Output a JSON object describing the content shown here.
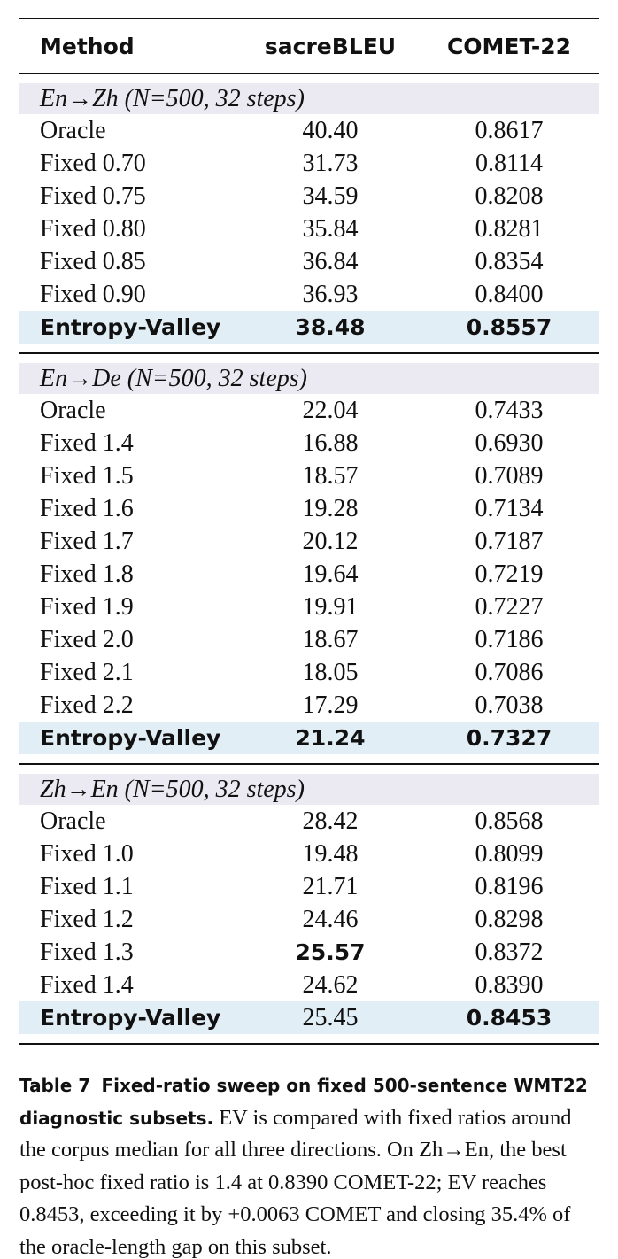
{
  "header": [
    "Method",
    "sacreBLEU",
    "COMET-22"
  ],
  "sections": [
    {
      "title": "En→Zh (N=500, 32 steps)",
      "rows": [
        [
          "Oracle",
          "40.40",
          "0.8617"
        ],
        [
          "Fixed 0.70",
          "31.73",
          "0.8114"
        ],
        [
          "Fixed 0.75",
          "34.59",
          "0.8208"
        ],
        [
          "Fixed 0.80",
          "35.84",
          "0.8281"
        ],
        [
          "Fixed 0.85",
          "36.84",
          "0.8354"
        ],
        [
          "Fixed 0.90",
          "36.93",
          "0.8400"
        ],
        [
          "Entropy-Valley",
          "38.48",
          "0.8557"
        ]
      ],
      "highlight_row": 6,
      "bold_cells": [
        [
          6,
          0
        ],
        [
          6,
          1
        ],
        [
          6,
          2
        ]
      ]
    },
    {
      "title": "En→De (N=500, 32 steps)",
      "rows": [
        [
          "Oracle",
          "22.04",
          "0.7433"
        ],
        [
          "Fixed 1.4",
          "16.88",
          "0.6930"
        ],
        [
          "Fixed 1.5",
          "18.57",
          "0.7089"
        ],
        [
          "Fixed 1.6",
          "19.28",
          "0.7134"
        ],
        [
          "Fixed 1.7",
          "20.12",
          "0.7187"
        ],
        [
          "Fixed 1.8",
          "19.64",
          "0.7219"
        ],
        [
          "Fixed 1.9",
          "19.91",
          "0.7227"
        ],
        [
          "Fixed 2.0",
          "18.67",
          "0.7186"
        ],
        [
          "Fixed 2.1",
          "18.05",
          "0.7086"
        ],
        [
          "Fixed 2.2",
          "17.29",
          "0.7038"
        ],
        [
          "Entropy-Valley",
          "21.24",
          "0.7327"
        ]
      ],
      "highlight_row": 10,
      "bold_cells": [
        [
          10,
          0
        ],
        [
          10,
          1
        ],
        [
          10,
          2
        ]
      ]
    },
    {
      "title": "Zh→En (N=500, 32 steps)",
      "rows": [
        [
          "Oracle",
          "28.42",
          "0.8568"
        ],
        [
          "Fixed 1.0",
          "19.48",
          "0.8099"
        ],
        [
          "Fixed 1.1",
          "21.71",
          "0.8196"
        ],
        [
          "Fixed 1.2",
          "24.46",
          "0.8298"
        ],
        [
          "Fixed 1.3",
          "25.57",
          "0.8372"
        ],
        [
          "Fixed 1.4",
          "24.62",
          "0.8390"
        ],
        [
          "Entropy-Valley",
          "25.45",
          "0.8453"
        ]
      ],
      "highlight_row": 6,
      "bold_cells": [
        [
          4,
          1
        ],
        [
          6,
          0
        ],
        [
          6,
          2
        ]
      ]
    }
  ],
  "caption": {
    "label": "Table 7",
    "title": "Fixed-ratio sweep on fixed 500-sentence WMT22 diagnostic subsets.",
    "text": "EV is compared with fixed ratios around the corpus median for all three directions. On Zh→En, the best post-hoc fixed ratio is 1.4 at 0.8390 COMET-22; EV reaches 0.8453, exceeding it by +0.0063 COMET and closing 35.4% of the oracle-length gap on this subset."
  }
}
